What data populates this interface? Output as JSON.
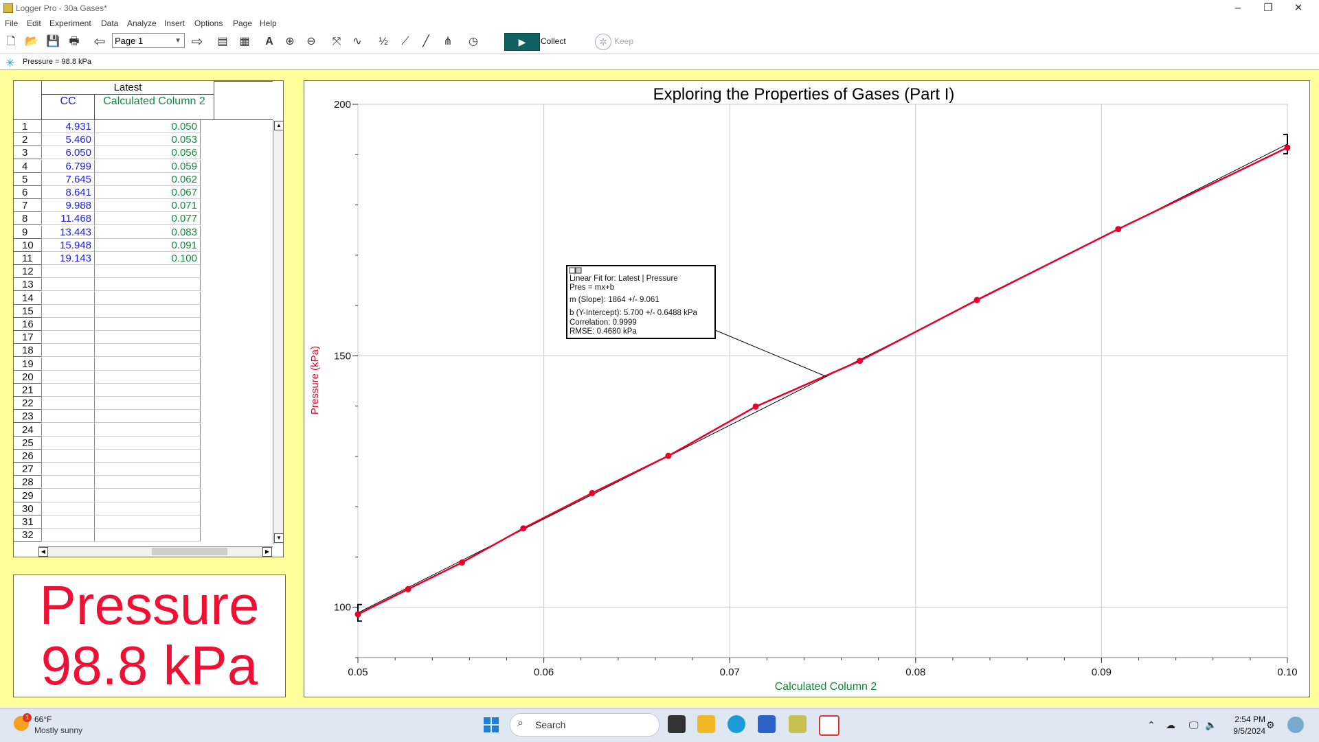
{
  "window": {
    "title": "Logger Pro - 30a Gases*",
    "minimize": "–",
    "restore": "❐",
    "close": "✕"
  },
  "menu": [
    "File",
    "Edit",
    "Experiment",
    "Data",
    "Analyze",
    "Insert",
    "Options",
    "Page",
    "Help"
  ],
  "toolbar": {
    "page_select": "Page 1",
    "collect_label": "Collect",
    "keep_label": "Keep",
    "icons": [
      "new-file",
      "open-folder",
      "save",
      "print",
      "back-arrow",
      "forward-arrow",
      "data-browser",
      "calculator",
      "autoscale",
      "zoom-in",
      "zoom-out",
      "examine",
      "tangent",
      "interpolate",
      "statistics",
      "linear-fit",
      "curve-fit",
      "model",
      "replay",
      "collect",
      "keep"
    ]
  },
  "sensor_bar": {
    "text": "Pressure = 98.8 kPa"
  },
  "table": {
    "dataset": "Latest",
    "columns": [
      "CC",
      "Calculated Column 2"
    ],
    "rows": [
      [
        "4.931",
        "0.050"
      ],
      [
        "5.460",
        "0.053"
      ],
      [
        "6.050",
        "0.056"
      ],
      [
        "6.799",
        "0.059"
      ],
      [
        "7.645",
        "0.062"
      ],
      [
        "8.641",
        "0.067"
      ],
      [
        "9.988",
        "0.071"
      ],
      [
        "11.468",
        "0.077"
      ],
      [
        "13.443",
        "0.083"
      ],
      [
        "15.948",
        "0.091"
      ],
      [
        "19.143",
        "0.100"
      ]
    ],
    "row_numbers": [
      "1",
      "2",
      "3",
      "4",
      "5",
      "6",
      "7",
      "8",
      "9",
      "10",
      "11",
      "12",
      "13",
      "14",
      "15",
      "16",
      "17",
      "18",
      "19",
      "20",
      "21",
      "22",
      "23",
      "24",
      "25",
      "26",
      "27",
      "28",
      "29",
      "30",
      "31",
      "32"
    ]
  },
  "meter": {
    "label": "Pressure",
    "value": "98.8 kPa"
  },
  "chart_data": {
    "type": "scatter",
    "title": "Exploring the Properties of Gases (Part I)",
    "xlabel": "Calculated Column 2",
    "ylabel": "Pressure (kPa)",
    "xlim": [
      0.05,
      0.1
    ],
    "ylim": [
      90,
      200
    ],
    "xticks": [
      "0.05",
      "0.06",
      "0.07",
      "0.08",
      "0.09",
      "0.10"
    ],
    "xtick_values": [
      0.05,
      0.06,
      0.07,
      0.08,
      0.09,
      0.1
    ],
    "yticks": [
      "100",
      "150",
      "200"
    ],
    "ytick_values": [
      100,
      150,
      200
    ],
    "colors": {
      "series": "#e8002a",
      "fit": "#000000",
      "ylabel": "#e8002a",
      "xlabel": "#108a3a"
    },
    "series": [
      {
        "x": [
          0.05,
          0.0527,
          0.0556,
          0.0589,
          0.0626,
          0.0667,
          0.0714,
          0.077,
          0.0833,
          0.0909,
          0.1
        ],
        "y": [
          98.6,
          103.6,
          108.9,
          115.7,
          122.7,
          130.1,
          139.9,
          149.0,
          161.1,
          175.2,
          191.4
        ]
      }
    ],
    "fit": {
      "slope": 1864,
      "intercept": 5.7
    },
    "annotation": {
      "lines": [
        "Linear Fit for: Latest | Pressure",
        "Pres = mx+b",
        "m (Slope): 1864 +/- 9.061",
        "b (Y-Intercept): 5.700 +/- 0.6488 kPa",
        "Correlation: 0.9999",
        "RMSE: 0.4680 kPa"
      ]
    }
  },
  "taskbar": {
    "weather_temp": "66°F",
    "weather_desc": "Mostly sunny",
    "weather_badge": "1",
    "search_placeholder": "Search",
    "time": "2:54 PM",
    "date": "9/5/2024"
  }
}
